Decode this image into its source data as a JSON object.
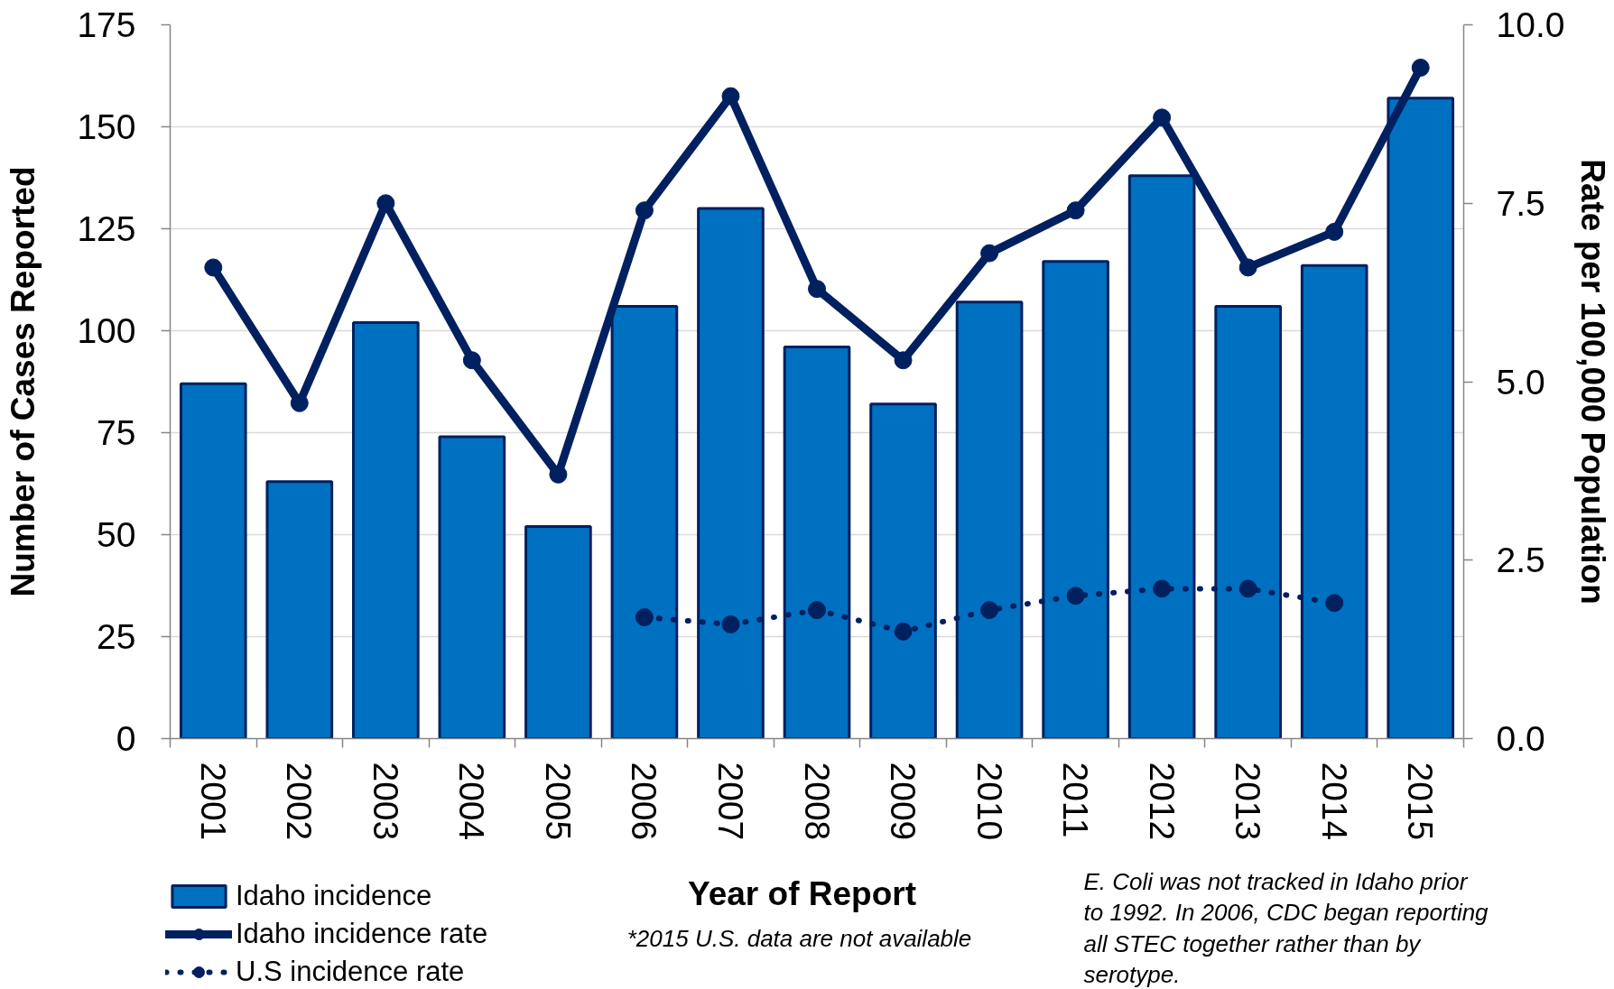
{
  "chart_data": {
    "type": "bar",
    "xlabel": "Year of Report",
    "ylabel": "Number of Cases Reported",
    "y2label": "Rate per 100,000 Population",
    "categories": [
      "2001",
      "2002",
      "2003",
      "2004",
      "2005",
      "2006",
      "2007",
      "2008",
      "2009",
      "2010",
      "2011",
      "2012",
      "2013",
      "2014",
      "2015"
    ],
    "series": [
      {
        "name": "Idaho incidence",
        "color": "#0070c0",
        "values": [
          87,
          63,
          102,
          74,
          52,
          106,
          130,
          96,
          82,
          107,
          117,
          138,
          106,
          116,
          157
        ]
      },
      {
        "name": "Idaho incidence rate",
        "type": "line",
        "axis": "y2",
        "color": "#002060",
        "marker": "circle",
        "line_style": "solid",
        "values": [
          6.6,
          4.7,
          7.5,
          5.3,
          3.7,
          7.4,
          9.0,
          6.3,
          5.3,
          6.8,
          7.4,
          8.7,
          6.6,
          7.1,
          9.4
        ]
      },
      {
        "name": "U.S incidence rate",
        "type": "line",
        "axis": "y2",
        "color": "#002060",
        "marker": "circle",
        "line_style": "dotted",
        "values": [
          null,
          null,
          null,
          null,
          null,
          1.7,
          1.6,
          1.8,
          1.5,
          1.8,
          2.0,
          2.1,
          2.1,
          1.9,
          null
        ]
      }
    ],
    "ylim": [
      0,
      175
    ],
    "yticks": [
      0,
      25,
      50,
      75,
      100,
      125,
      150,
      175
    ],
    "y2lim": [
      0,
      10
    ],
    "y2ticks": [
      {
        "value": 0,
        "label": "0.0"
      },
      2.5,
      {
        "value": 5,
        "label": "5.0"
      },
      7.5,
      {
        "value": 10,
        "label": "10.0"
      }
    ],
    "grid": "y",
    "legend": "bottom left",
    "annotations": [
      "*2015 U.S. data are not available",
      "E. Coli was not tracked in Idaho prior to 1992. In 2006, CDC began reporting all STEC together rather than by serotype."
    ]
  }
}
